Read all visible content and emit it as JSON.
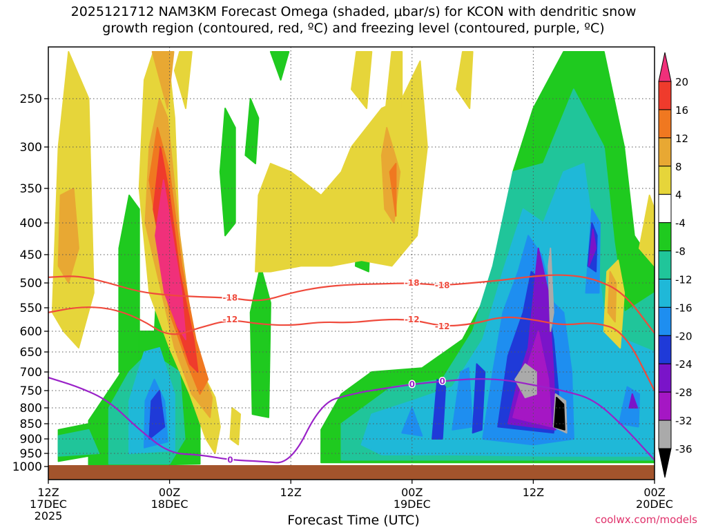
{
  "chart_data": {
    "type": "heatmap",
    "title_line1": "2025121712 NAM3KM Forecast Omega (shaded, μbar/s) for KCON with dendritic snow",
    "title_line2": "growth region (contoured, red, ºC) and freezing level (contoured, purple, ºC)",
    "xlabel": "Forecast Time (UTC)",
    "ylabel": "",
    "credit": "coolwx.com/models",
    "x_ticks": [
      {
        "label": "12Z",
        "line2": "17DEC",
        "line3": "2025",
        "hour": 0
      },
      {
        "label": "00Z",
        "line2": "18DEC",
        "line3": "",
        "hour": 12
      },
      {
        "label": "12Z",
        "line2": "",
        "line3": "",
        "hour": 24
      },
      {
        "label": "00Z",
        "line2": "19DEC",
        "line3": "",
        "hour": 36
      },
      {
        "label": "12Z",
        "line2": "",
        "line3": "",
        "hour": 48
      },
      {
        "label": "00Z",
        "line2": "20DEC",
        "line3": "",
        "hour": 60
      }
    ],
    "xlim": [
      0,
      60
    ],
    "y_ticks": [
      "250",
      "300",
      "350",
      "400",
      "450",
      "500",
      "550",
      "600",
      "650",
      "700",
      "750",
      "800",
      "850",
      "900",
      "950",
      "1000"
    ],
    "ylim_hPa": [
      200,
      1015
    ],
    "colorbar": {
      "labels": [
        "20",
        "16",
        "12",
        "8",
        "4",
        "-4",
        "-8",
        "-12",
        "-16",
        "-20",
        "-24",
        "-28",
        "-32",
        "-36"
      ],
      "colors": [
        "#f0307a",
        "#ef3b2c",
        "#f07820",
        "#e8a833",
        "#e6d53a",
        "#ffffff",
        "#1fca1f",
        "#20c59a",
        "#1fb8d8",
        "#1e8ef0",
        "#1f3ad8",
        "#7a14c9",
        "#a517c4",
        "#aaaaaa",
        "#000000"
      ]
    },
    "contours": [
      {
        "name": "dgz-upper",
        "label": "-18",
        "color": "#ef4a3c",
        "hour": [
          0,
          3,
          6,
          9,
          12,
          15,
          18,
          21,
          24,
          27,
          30,
          33,
          36,
          39,
          42,
          45,
          48,
          51,
          54,
          57,
          60
        ],
        "hPa": [
          490,
          487,
          500,
          518,
          525,
          528,
          530,
          538,
          520,
          508,
          503,
          502,
          500,
          505,
          500,
          495,
          488,
          485,
          492,
          520,
          605
        ]
      },
      {
        "name": "dgz-lower",
        "label": "-12",
        "color": "#ef4a3c",
        "hour": [
          0,
          3,
          6,
          9,
          12,
          15,
          18,
          21,
          24,
          27,
          30,
          33,
          36,
          39,
          42,
          45,
          48,
          51,
          54,
          57,
          60
        ],
        "hPa": [
          560,
          548,
          550,
          572,
          615,
          592,
          575,
          585,
          588,
          580,
          582,
          575,
          575,
          590,
          585,
          568,
          575,
          588,
          580,
          600,
          750
        ]
      },
      {
        "name": "freezing-level",
        "label": "0",
        "color": "#9a22c8",
        "hour": [
          0,
          3,
          6,
          9,
          12,
          15,
          18,
          21,
          24,
          27,
          30,
          33,
          36,
          39,
          42,
          45,
          48,
          51,
          54,
          57,
          60
        ],
        "hPa": [
          715,
          740,
          780,
          870,
          950,
          955,
          975,
          980,
          990,
          785,
          760,
          745,
          733,
          725,
          718,
          720,
          735,
          750,
          775,
          860,
          975
        ]
      }
    ],
    "surface_color": "#a3542c"
  }
}
